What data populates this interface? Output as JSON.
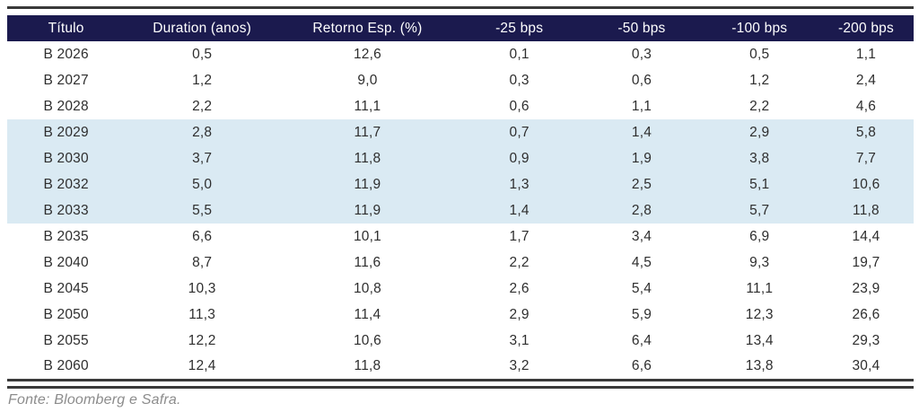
{
  "chart_data": {
    "type": "table",
    "columns": [
      "Título",
      "Duration (anos)",
      "Retorno Esp. (%)",
      "-25 bps",
      "-50 bps",
      "-100 bps",
      "-200 bps"
    ],
    "rows": [
      [
        "B 2026",
        0.5,
        12.6,
        0.1,
        0.3,
        0.5,
        1.1
      ],
      [
        "B 2027",
        1.2,
        9.0,
        0.3,
        0.6,
        1.2,
        2.4
      ],
      [
        "B 2028",
        2.2,
        11.1,
        0.6,
        1.1,
        2.2,
        4.6
      ],
      [
        "B 2029",
        2.8,
        11.7,
        0.7,
        1.4,
        2.9,
        5.8
      ],
      [
        "B 2030",
        3.7,
        11.8,
        0.9,
        1.9,
        3.8,
        7.7
      ],
      [
        "B 2032",
        5.0,
        11.9,
        1.3,
        2.5,
        5.1,
        10.6
      ],
      [
        "B 2033",
        5.5,
        11.9,
        1.4,
        2.8,
        5.7,
        11.8
      ],
      [
        "B 2035",
        6.6,
        10.1,
        1.7,
        3.4,
        6.9,
        14.4
      ],
      [
        "B 2040",
        8.7,
        11.6,
        2.2,
        4.5,
        9.3,
        19.7
      ],
      [
        "B 2045",
        10.3,
        10.8,
        2.6,
        5.4,
        11.1,
        23.9
      ],
      [
        "B 2050",
        11.3,
        11.4,
        2.9,
        5.9,
        12.3,
        26.6
      ],
      [
        "B 2055",
        12.2,
        10.6,
        3.1,
        6.4,
        13.4,
        29.3
      ],
      [
        "B 2060",
        12.4,
        11.8,
        3.2,
        6.6,
        13.8,
        30.4
      ]
    ],
    "highlighted_rows": [
      "B 2029",
      "B 2030",
      "B 2032",
      "B 2033"
    ],
    "decimal_separator": ",",
    "source": "Fonte: Bloomberg e Safra."
  },
  "table": {
    "columns": [
      "Título",
      "Duration (anos)",
      "Retorno Esp. (%)",
      "-25 bps",
      "-50 bps",
      "-100 bps",
      "-200 bps"
    ],
    "rows": [
      {
        "cells": [
          "B 2026",
          "0,5",
          "12,6",
          "0,1",
          "0,3",
          "0,5",
          "1,1"
        ],
        "highlight": false
      },
      {
        "cells": [
          "B 2027",
          "1,2",
          "9,0",
          "0,3",
          "0,6",
          "1,2",
          "2,4"
        ],
        "highlight": false
      },
      {
        "cells": [
          "B 2028",
          "2,2",
          "11,1",
          "0,6",
          "1,1",
          "2,2",
          "4,6"
        ],
        "highlight": false
      },
      {
        "cells": [
          "B 2029",
          "2,8",
          "11,7",
          "0,7",
          "1,4",
          "2,9",
          "5,8"
        ],
        "highlight": true
      },
      {
        "cells": [
          "B 2030",
          "3,7",
          "11,8",
          "0,9",
          "1,9",
          "3,8",
          "7,7"
        ],
        "highlight": true
      },
      {
        "cells": [
          "B 2032",
          "5,0",
          "11,9",
          "1,3",
          "2,5",
          "5,1",
          "10,6"
        ],
        "highlight": true
      },
      {
        "cells": [
          "B 2033",
          "5,5",
          "11,9",
          "1,4",
          "2,8",
          "5,7",
          "11,8"
        ],
        "highlight": true
      },
      {
        "cells": [
          "B 2035",
          "6,6",
          "10,1",
          "1,7",
          "3,4",
          "6,9",
          "14,4"
        ],
        "highlight": false
      },
      {
        "cells": [
          "B 2040",
          "8,7",
          "11,6",
          "2,2",
          "4,5",
          "9,3",
          "19,7"
        ],
        "highlight": false
      },
      {
        "cells": [
          "B 2045",
          "10,3",
          "10,8",
          "2,6",
          "5,4",
          "11,1",
          "23,9"
        ],
        "highlight": false
      },
      {
        "cells": [
          "B 2050",
          "11,3",
          "11,4",
          "2,9",
          "5,9",
          "12,3",
          "26,6"
        ],
        "highlight": false
      },
      {
        "cells": [
          "B 2055",
          "12,2",
          "10,6",
          "3,1",
          "6,4",
          "13,4",
          "29,3"
        ],
        "highlight": false
      },
      {
        "cells": [
          "B 2060",
          "12,4",
          "11,8",
          "3,2",
          "6,6",
          "13,8",
          "30,4"
        ],
        "highlight": false
      }
    ],
    "column_widths_pct": [
      13,
      17,
      19.5,
      14,
      13,
      13,
      10.5
    ]
  },
  "footer": {
    "source": "Fonte: Bloomberg e Safra."
  },
  "colors": {
    "header_bg": "#1b1a4e",
    "header_text": "#ffffff",
    "highlight_bg": "#daeaf3",
    "body_text": "#2e2e2e",
    "rule": "#3a3a3a",
    "source_text": "#8c8c8c"
  }
}
